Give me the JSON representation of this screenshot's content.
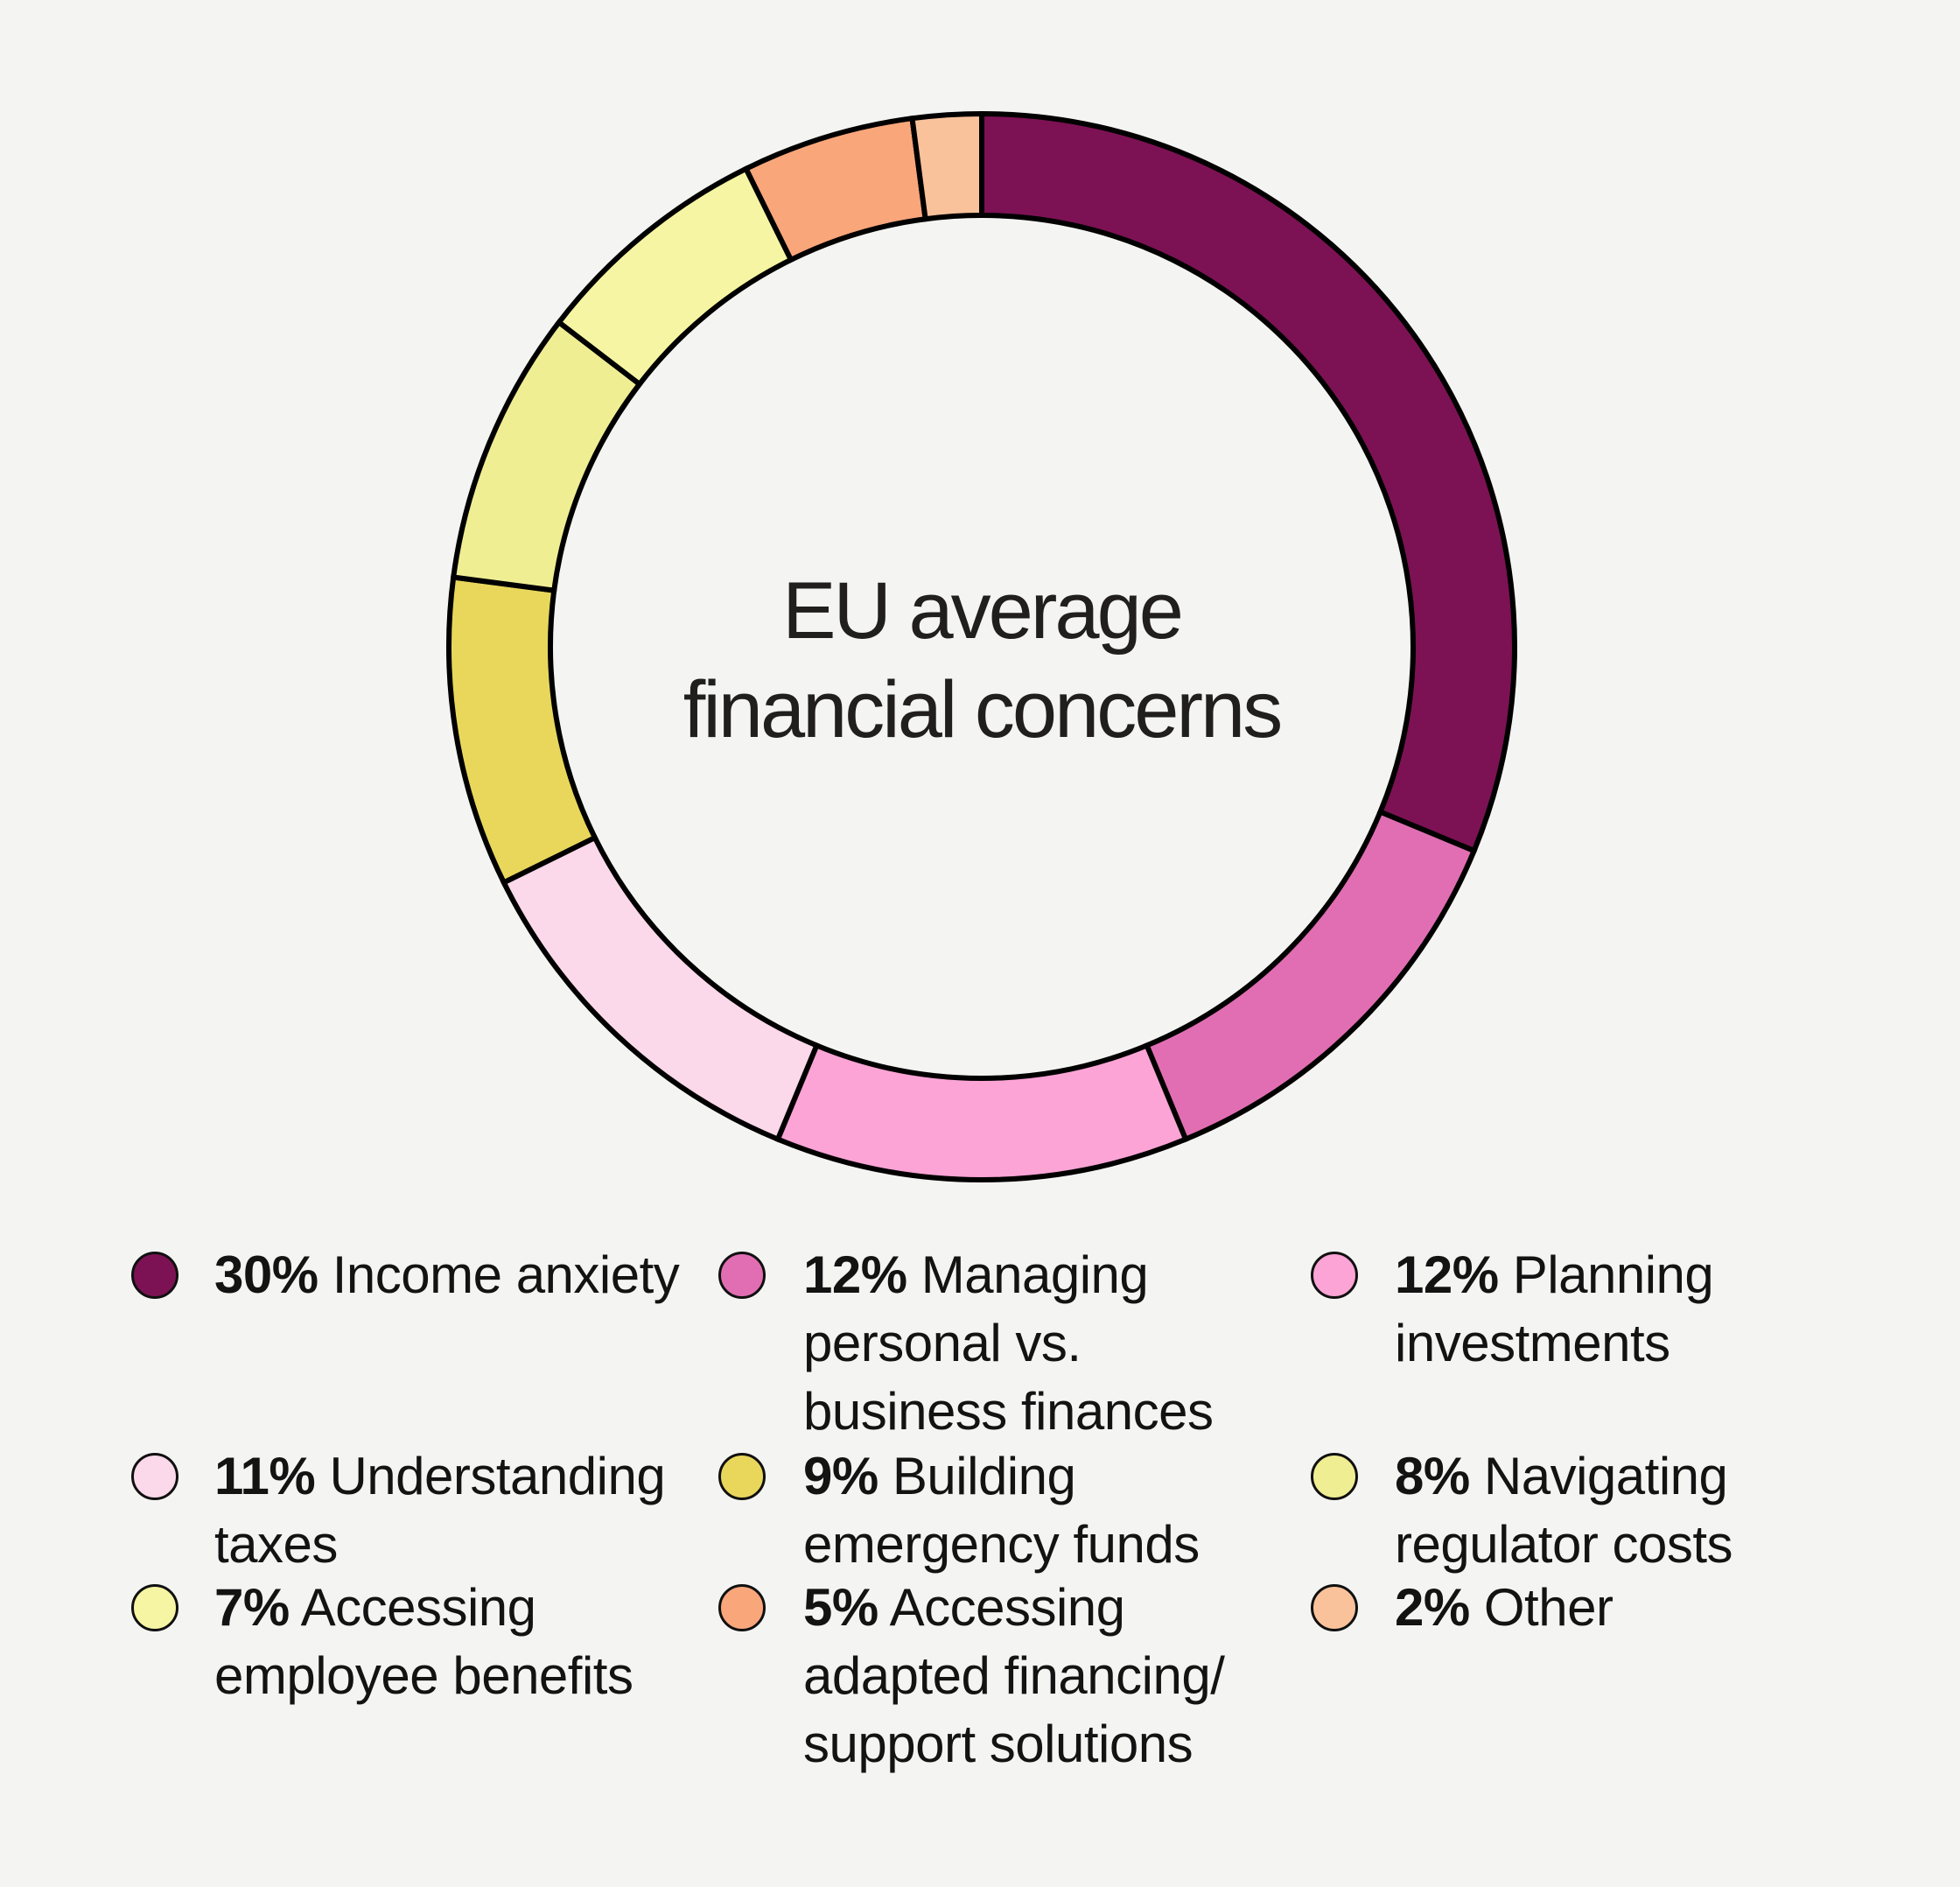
{
  "page": {
    "background": "#F4F4F3"
  },
  "chart_data": {
    "type": "pie",
    "subtype": "donut",
    "title": "EU average financial concerns",
    "title_lines": [
      "EU average",
      "financial concerns"
    ],
    "unit": "%",
    "start_angle_deg": 0,
    "direction": "clockwise",
    "segment_outline_color": "#000000",
    "legend_position": "bottom",
    "segments": [
      {
        "value": 30,
        "pct_label": "30%",
        "label": "Income anxiety",
        "legend_lines": [
          "Income anxiety"
        ],
        "color": "#7C1254"
      },
      {
        "value": 12,
        "pct_label": "12%",
        "label": "Managing personal vs. business finances",
        "legend_lines": [
          "Managing",
          "personal vs.",
          "business finances"
        ],
        "color": "#E16EB3"
      },
      {
        "value": 12,
        "pct_label": "12%",
        "label": "Planning investments",
        "legend_lines": [
          "Planning",
          "investments"
        ],
        "color": "#FCA4D6"
      },
      {
        "value": 11,
        "pct_label": "11%",
        "label": "Understanding taxes",
        "legend_lines": [
          "Understanding",
          "taxes"
        ],
        "color": "#FBD8EA"
      },
      {
        "value": 9,
        "pct_label": "9%",
        "label": "Building emergency funds",
        "legend_lines": [
          "Building",
          "emergency funds"
        ],
        "color": "#E9D75C"
      },
      {
        "value": 8,
        "pct_label": "8%",
        "label": "Navigating regulator costs",
        "legend_lines": [
          "Navigating",
          "regulator costs"
        ],
        "color": "#F0EE93"
      },
      {
        "value": 7,
        "pct_label": "7%",
        "label": "Accessing employee benefits",
        "legend_lines": [
          "Accessing",
          "employee benefits"
        ],
        "color": "#F6F5A3"
      },
      {
        "value": 5,
        "pct_label": "5%",
        "label": "Accessing adapted financing/ support solutions",
        "legend_lines": [
          "Accessing",
          "adapted financing/",
          "support solutions"
        ],
        "color": "#F9A67B"
      },
      {
        "value": 2,
        "pct_label": "2%",
        "label": "Other",
        "legend_lines": [
          "Other"
        ],
        "color": "#FAC29B"
      }
    ]
  }
}
